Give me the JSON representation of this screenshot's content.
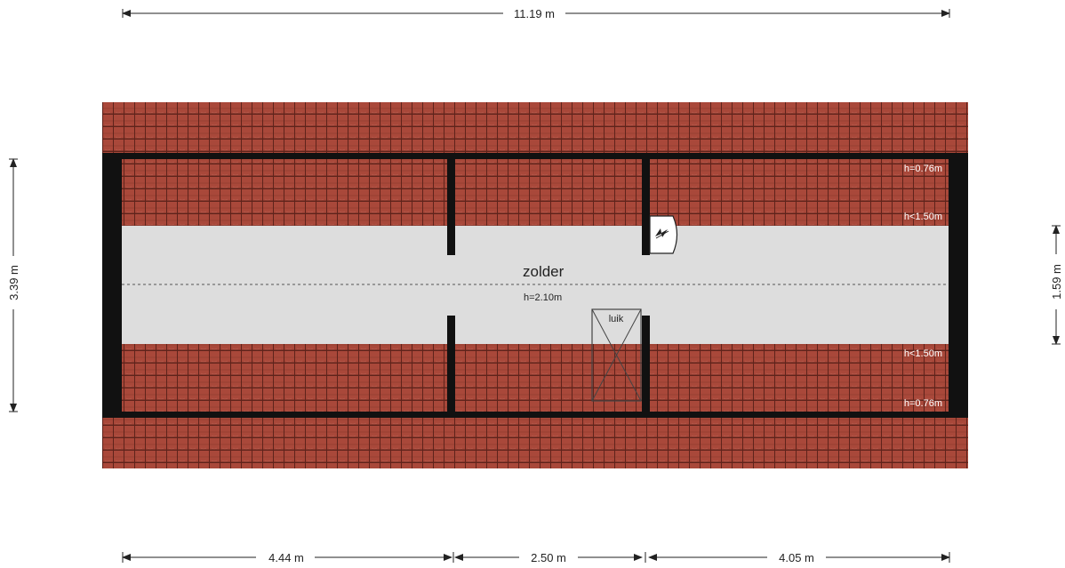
{
  "dimensions": {
    "total_width": "11.19 m",
    "total_depth": "3.39 m",
    "right_depth": "1.59 m",
    "segment_1": "4.44 m",
    "segment_2": "2.50 m",
    "segment_3": "4.05 m"
  },
  "room": {
    "name": "zolder",
    "height": "h=2.10m"
  },
  "height_lines": {
    "top_eave": "h=0.76m",
    "top_limit": "h<1.50m",
    "bottom_limit": "h<1.50m",
    "bottom_eave": "h=0.76m"
  },
  "hatch": {
    "label": "luik"
  },
  "fixtures": {
    "boiler_icon": "heater-icon"
  },
  "colors": {
    "roof_tile": "#a9483a",
    "tile_line": "#6e2a20",
    "floor": "#dddddd",
    "wall": "#111111"
  }
}
